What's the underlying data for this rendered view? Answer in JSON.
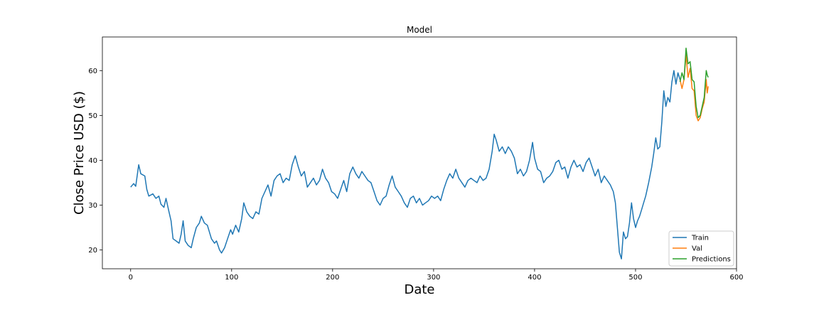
{
  "chart_data": {
    "type": "line",
    "title": "Model",
    "xlabel": "Date",
    "ylabel": "Close Price USD ($)",
    "xlim": [
      -28,
      600
    ],
    "ylim": [
      15.8,
      67.5
    ],
    "xticks": [
      0,
      100,
      200,
      300,
      400,
      500,
      600
    ],
    "yticks": [
      20,
      30,
      40,
      50,
      60
    ],
    "grid": false,
    "legend_position": "lower-right",
    "series": [
      {
        "name": "Train",
        "color": "#1f77b4",
        "points": [
          [
            0,
            34.0
          ],
          [
            3,
            34.8
          ],
          [
            5,
            34.2
          ],
          [
            8,
            39.0
          ],
          [
            10,
            37.0
          ],
          [
            14,
            36.5
          ],
          [
            16,
            33.5
          ],
          [
            18,
            32.0
          ],
          [
            22,
            32.5
          ],
          [
            25,
            31.5
          ],
          [
            28,
            32.0
          ],
          [
            30,
            30.2
          ],
          [
            33,
            29.5
          ],
          [
            35,
            31.5
          ],
          [
            38,
            28.5
          ],
          [
            40,
            26.5
          ],
          [
            42,
            22.5
          ],
          [
            45,
            22.0
          ],
          [
            48,
            21.5
          ],
          [
            50,
            23.5
          ],
          [
            52,
            26.5
          ],
          [
            54,
            22.0
          ],
          [
            57,
            21.0
          ],
          [
            60,
            20.5
          ],
          [
            62,
            22.5
          ],
          [
            65,
            25.0
          ],
          [
            68,
            26.0
          ],
          [
            70,
            27.5
          ],
          [
            73,
            26.0
          ],
          [
            76,
            25.5
          ],
          [
            80,
            22.5
          ],
          [
            83,
            21.5
          ],
          [
            85,
            22.0
          ],
          [
            88,
            20.0
          ],
          [
            90,
            19.3
          ],
          [
            93,
            20.5
          ],
          [
            96,
            22.5
          ],
          [
            99,
            24.5
          ],
          [
            101,
            23.5
          ],
          [
            104,
            25.5
          ],
          [
            107,
            24.0
          ],
          [
            110,
            27.0
          ],
          [
            112,
            30.5
          ],
          [
            115,
            28.5
          ],
          [
            118,
            27.5
          ],
          [
            121,
            27.0
          ],
          [
            124,
            28.5
          ],
          [
            127,
            28.0
          ],
          [
            130,
            31.5
          ],
          [
            133,
            33.0
          ],
          [
            136,
            34.5
          ],
          [
            139,
            32.0
          ],
          [
            142,
            35.5
          ],
          [
            145,
            36.5
          ],
          [
            148,
            37.0
          ],
          [
            151,
            35.0
          ],
          [
            154,
            36.0
          ],
          [
            157,
            35.5
          ],
          [
            160,
            39.0
          ],
          [
            163,
            41.0
          ],
          [
            166,
            38.5
          ],
          [
            169,
            36.5
          ],
          [
            172,
            37.5
          ],
          [
            175,
            34.0
          ],
          [
            178,
            35.0
          ],
          [
            181,
            36.0
          ],
          [
            184,
            34.5
          ],
          [
            187,
            35.5
          ],
          [
            190,
            38.0
          ],
          [
            193,
            36.0
          ],
          [
            196,
            35.0
          ],
          [
            199,
            33.0
          ],
          [
            202,
            32.5
          ],
          [
            205,
            31.5
          ],
          [
            208,
            33.5
          ],
          [
            211,
            35.5
          ],
          [
            214,
            33.0
          ],
          [
            217,
            37.0
          ],
          [
            220,
            38.5
          ],
          [
            223,
            37.0
          ],
          [
            226,
            36.0
          ],
          [
            229,
            37.5
          ],
          [
            232,
            36.5
          ],
          [
            235,
            35.5
          ],
          [
            238,
            35.0
          ],
          [
            241,
            33.0
          ],
          [
            244,
            31.0
          ],
          [
            247,
            30.0
          ],
          [
            250,
            31.5
          ],
          [
            253,
            32.0
          ],
          [
            256,
            34.5
          ],
          [
            259,
            36.5
          ],
          [
            262,
            34.0
          ],
          [
            265,
            33.0
          ],
          [
            268,
            32.0
          ],
          [
            271,
            30.5
          ],
          [
            274,
            29.5
          ],
          [
            277,
            31.5
          ],
          [
            280,
            32.0
          ],
          [
            283,
            30.5
          ],
          [
            286,
            31.5
          ],
          [
            289,
            30.0
          ],
          [
            292,
            30.5
          ],
          [
            295,
            31.0
          ],
          [
            298,
            32.0
          ],
          [
            301,
            31.5
          ],
          [
            304,
            32.0
          ],
          [
            307,
            31.0
          ],
          [
            310,
            33.5
          ],
          [
            313,
            35.5
          ],
          [
            316,
            37.0
          ],
          [
            319,
            36.0
          ],
          [
            322,
            38.0
          ],
          [
            325,
            36.0
          ],
          [
            328,
            35.0
          ],
          [
            331,
            34.0
          ],
          [
            334,
            35.5
          ],
          [
            337,
            36.0
          ],
          [
            340,
            35.5
          ],
          [
            343,
            35.0
          ],
          [
            346,
            36.5
          ],
          [
            349,
            35.5
          ],
          [
            352,
            36.0
          ],
          [
            355,
            38.0
          ],
          [
            358,
            42.0
          ],
          [
            360,
            45.8
          ],
          [
            362,
            44.5
          ],
          [
            365,
            42.0
          ],
          [
            368,
            43.0
          ],
          [
            371,
            41.5
          ],
          [
            374,
            43.0
          ],
          [
            377,
            42.0
          ],
          [
            380,
            40.5
          ],
          [
            383,
            37.0
          ],
          [
            386,
            38.0
          ],
          [
            389,
            36.5
          ],
          [
            392,
            37.5
          ],
          [
            395,
            40.0
          ],
          [
            398,
            44.0
          ],
          [
            400,
            40.5
          ],
          [
            403,
            38.0
          ],
          [
            406,
            37.5
          ],
          [
            409,
            35.0
          ],
          [
            412,
            36.0
          ],
          [
            415,
            36.5
          ],
          [
            418,
            37.5
          ],
          [
            421,
            39.5
          ],
          [
            424,
            40.0
          ],
          [
            427,
            38.0
          ],
          [
            430,
            38.5
          ],
          [
            433,
            36.0
          ],
          [
            436,
            38.5
          ],
          [
            439,
            40.0
          ],
          [
            442,
            38.5
          ],
          [
            445,
            39.0
          ],
          [
            448,
            37.5
          ],
          [
            451,
            39.5
          ],
          [
            454,
            40.5
          ],
          [
            457,
            38.5
          ],
          [
            460,
            36.5
          ],
          [
            463,
            38.0
          ],
          [
            466,
            35.0
          ],
          [
            469,
            36.5
          ],
          [
            472,
            35.5
          ],
          [
            475,
            34.5
          ],
          [
            478,
            33.0
          ],
          [
            480,
            30.5
          ],
          [
            482,
            25.0
          ],
          [
            484,
            19.5
          ],
          [
            486,
            18.0
          ],
          [
            488,
            24.0
          ],
          [
            490,
            22.5
          ],
          [
            492,
            23.0
          ],
          [
            494,
            26.0
          ],
          [
            496,
            30.5
          ],
          [
            498,
            27.0
          ],
          [
            500,
            25.0
          ],
          [
            502,
            26.5
          ],
          [
            504,
            27.5
          ],
          [
            506,
            29.0
          ],
          [
            508,
            30.5
          ],
          [
            510,
            32.0
          ],
          [
            513,
            35.0
          ],
          [
            516,
            38.5
          ],
          [
            518,
            41.5
          ],
          [
            520,
            45.0
          ],
          [
            522,
            42.5
          ],
          [
            524,
            43.0
          ],
          [
            526,
            48.5
          ],
          [
            528,
            55.5
          ],
          [
            530,
            52.0
          ],
          [
            532,
            54.0
          ],
          [
            534,
            53.0
          ],
          [
            536,
            57.5
          ],
          [
            538,
            60.0
          ],
          [
            540,
            57.0
          ],
          [
            542,
            59.5
          ],
          [
            544,
            58.0
          ]
        ]
      },
      {
        "name": "Val",
        "color": "#ff7f0e",
        "points": [
          [
            544,
            58.0
          ],
          [
            546,
            56.0
          ],
          [
            548,
            58.0
          ],
          [
            550,
            63.5
          ],
          [
            552,
            58.5
          ],
          [
            554,
            60.5
          ],
          [
            556,
            56.0
          ],
          [
            558,
            55.5
          ],
          [
            560,
            50.0
          ],
          [
            562,
            48.8
          ],
          [
            564,
            49.5
          ],
          [
            566,
            51.5
          ],
          [
            568,
            53.0
          ],
          [
            570,
            58.0
          ],
          [
            571,
            55.0
          ],
          [
            572,
            56.5
          ]
        ]
      },
      {
        "name": "Predictions",
        "color": "#2ca02c",
        "points": [
          [
            544,
            57.5
          ],
          [
            546,
            59.5
          ],
          [
            548,
            58.0
          ],
          [
            550,
            65.0
          ],
          [
            552,
            61.5
          ],
          [
            554,
            62.0
          ],
          [
            556,
            58.0
          ],
          [
            558,
            57.5
          ],
          [
            560,
            52.0
          ],
          [
            562,
            49.5
          ],
          [
            564,
            50.0
          ],
          [
            566,
            52.0
          ],
          [
            568,
            54.0
          ],
          [
            570,
            60.0
          ],
          [
            571,
            59.0
          ],
          [
            572,
            58.5
          ]
        ]
      }
    ]
  }
}
